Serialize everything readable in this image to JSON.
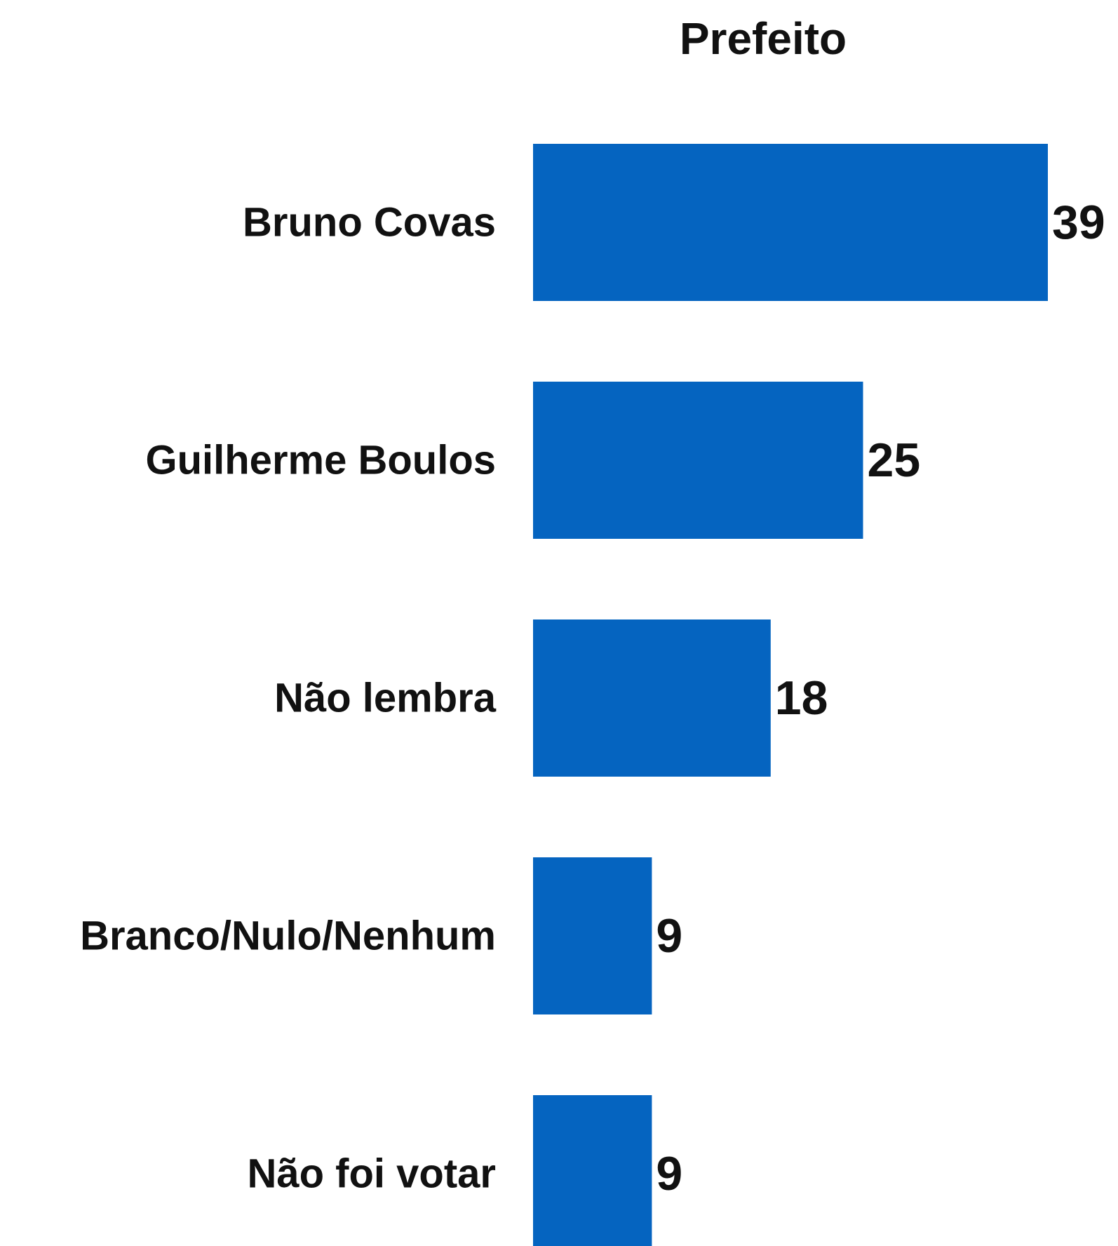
{
  "chart_data": {
    "type": "bar",
    "orientation": "horizontal",
    "title": "Prefeito",
    "categories": [
      "Bruno Covas",
      "Guilherme Boulos",
      "Não lembra",
      "Branco/Nulo/Nenhum",
      "Não foi votar"
    ],
    "values": [
      39,
      25,
      18,
      9,
      9
    ],
    "xlim": [
      0,
      39
    ],
    "grid": false,
    "legend": "none",
    "bar_color": "#0564C0"
  }
}
